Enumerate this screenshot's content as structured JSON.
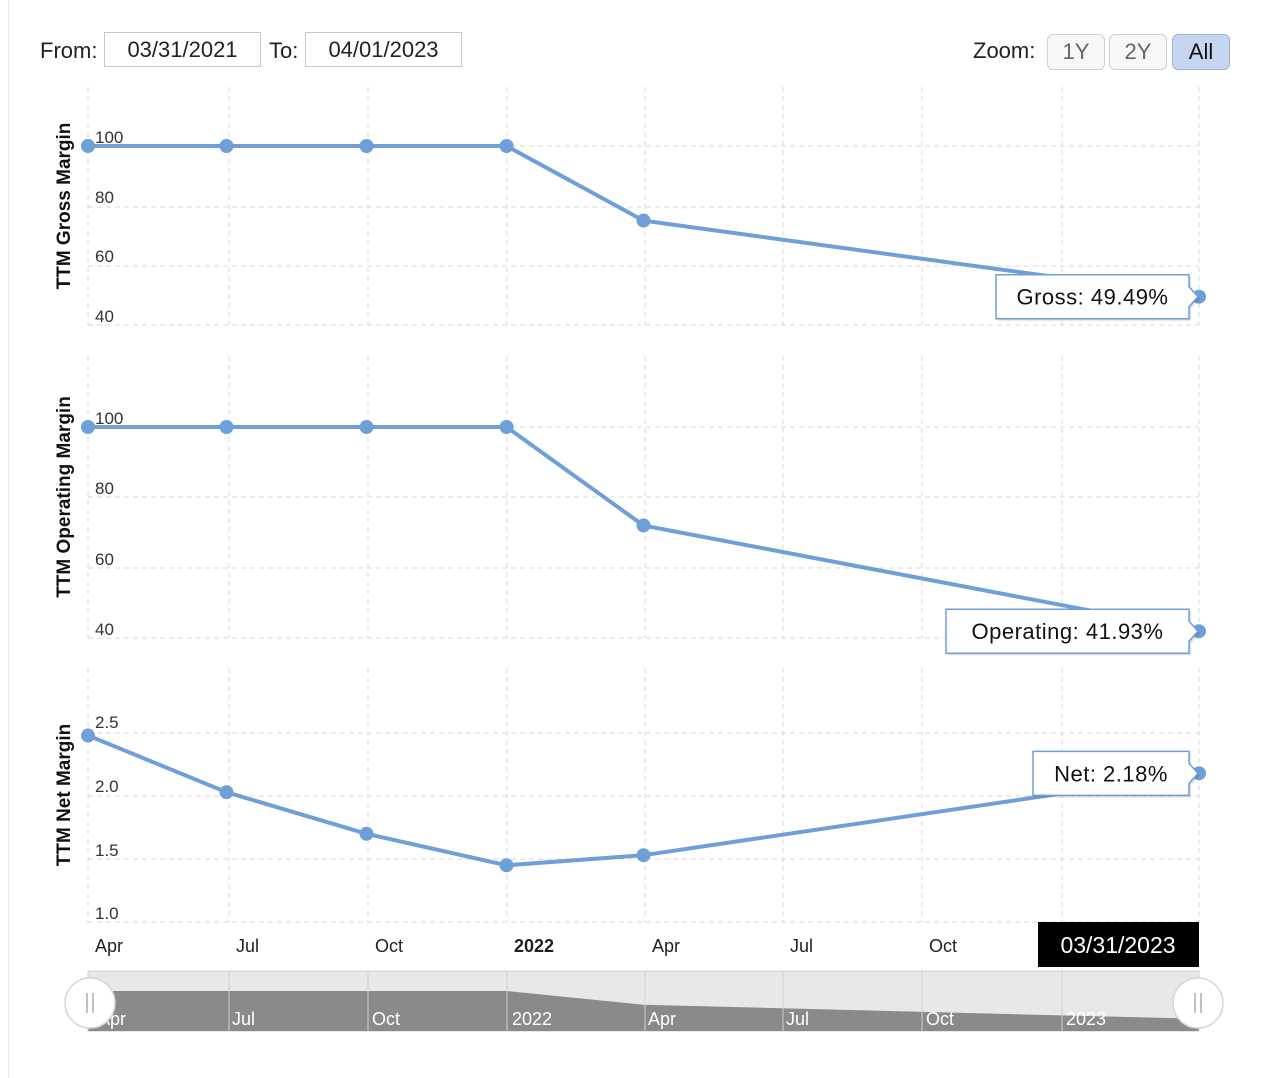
{
  "range_selector": {
    "from_label": "From:",
    "from_value": "03/31/2021",
    "to_label": "To:",
    "to_value": "04/01/2023",
    "zoom_label": "Zoom:",
    "zoom_buttons": [
      "1Y",
      "2Y",
      "All"
    ],
    "active_zoom": "All"
  },
  "colors": {
    "series": "#6f9fd8",
    "grid": "#d8d8d8",
    "navigator_fill": "#8a8a8a",
    "navigator_bg": "#e8e8e8"
  },
  "x_axis": {
    "tick_labels": [
      "Apr",
      "Jul",
      "Oct",
      "2022",
      "Apr",
      "Jul",
      "Oct"
    ],
    "hover_label": "03/31/2023"
  },
  "navigator": {
    "tick_labels": [
      "Apr",
      "Jul",
      "Oct",
      "2022",
      "Apr",
      "Jul",
      "Oct",
      "2023"
    ]
  },
  "chart_data": [
    {
      "type": "line",
      "ylabel": "TTM Gross Margin",
      "ylim": [
        40,
        100
      ],
      "yticks": [
        "100",
        "80",
        "60",
        "40"
      ],
      "x": [
        "2021-03-31",
        "2021-06-30",
        "2021-09-30",
        "2021-12-31",
        "2022-03-31",
        "2023-03-31"
      ],
      "values": [
        100,
        100,
        100,
        100,
        75,
        49.49
      ],
      "tooltip": "Gross: 49.49%"
    },
    {
      "type": "line",
      "ylabel": "TTM Operating Margin",
      "ylim": [
        40,
        100
      ],
      "yticks": [
        "100",
        "80",
        "60",
        "40"
      ],
      "x": [
        "2021-03-31",
        "2021-06-30",
        "2021-09-30",
        "2021-12-31",
        "2022-03-31",
        "2023-03-31"
      ],
      "values": [
        100,
        100,
        100,
        100,
        72,
        41.93
      ],
      "tooltip": "Operating: 41.93%"
    },
    {
      "type": "line",
      "ylabel": "TTM Net Margin",
      "ylim": [
        1.0,
        2.5
      ],
      "yticks": [
        "2.5",
        "2.0",
        "1.5",
        "1.0"
      ],
      "x": [
        "2021-03-31",
        "2021-06-30",
        "2021-09-30",
        "2021-12-31",
        "2022-03-31",
        "2023-03-31"
      ],
      "values": [
        2.48,
        2.03,
        1.7,
        1.45,
        1.53,
        2.18
      ],
      "tooltip": "Net: 2.18%"
    }
  ]
}
